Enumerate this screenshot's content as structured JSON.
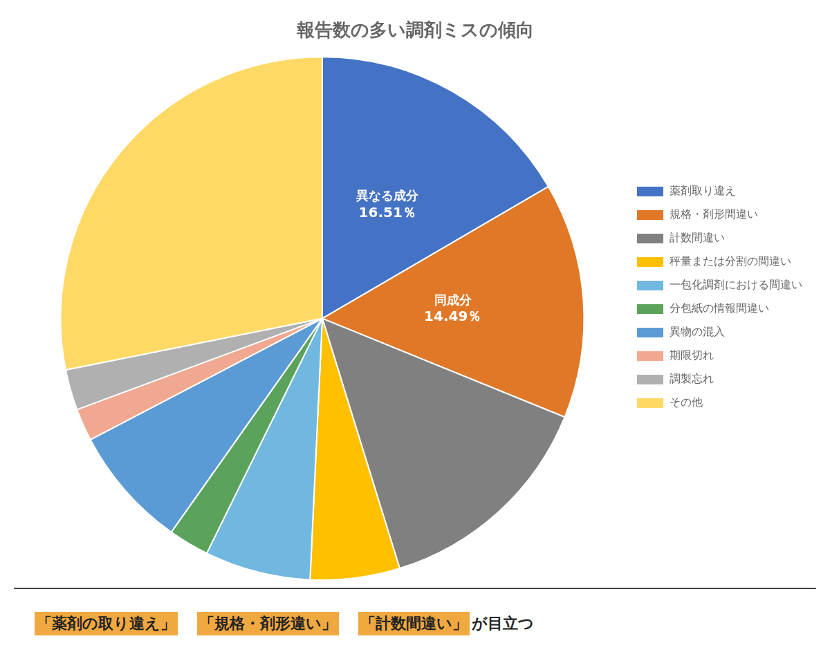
{
  "chart_data": {
    "type": "pie",
    "title": "報告数の多い調剤ミスの傾向",
    "categories": [
      "薬剤取り違え",
      "規格・剤形間違い",
      "計数間違い",
      "秤量または分割の間違い",
      "一包化調剤における間違い",
      "分包紙の情報間違い",
      "異物の混入",
      "期限切れ",
      "調製忘れ",
      "その他"
    ],
    "values": [
      16.51,
      14.49,
      14.0,
      5.5,
      6.5,
      2.5,
      7.5,
      2.0,
      2.5,
      28.01
    ],
    "colors": [
      "#4472c4",
      "#e07828",
      "#808080",
      "#ffc000",
      "#70b8e0",
      "#5ba35b",
      "#5b9bd5",
      "#f0a890",
      "#b0b0b0",
      "#ffd966"
    ],
    "legend": "right",
    "annotations": [
      {
        "category": "薬剤取り違え",
        "text": [
          "異なる成分",
          "16.51％"
        ]
      },
      {
        "category": "規格・剤形間違い",
        "text": [
          "同成分",
          "14.49％"
        ]
      }
    ],
    "footnote": {
      "parts": [
        {
          "text": "「薬剤の取り違え」",
          "highlight": true
        },
        {
          "text": "　",
          "highlight": false
        },
        {
          "text": "「規格・剤形違い」",
          "highlight": true
        },
        {
          "text": "　",
          "highlight": false
        },
        {
          "text": "「計数間違い」",
          "highlight": true
        },
        {
          "text": "が目立つ",
          "highlight": false
        }
      ],
      "highlight_color": "#f0a840"
    }
  }
}
